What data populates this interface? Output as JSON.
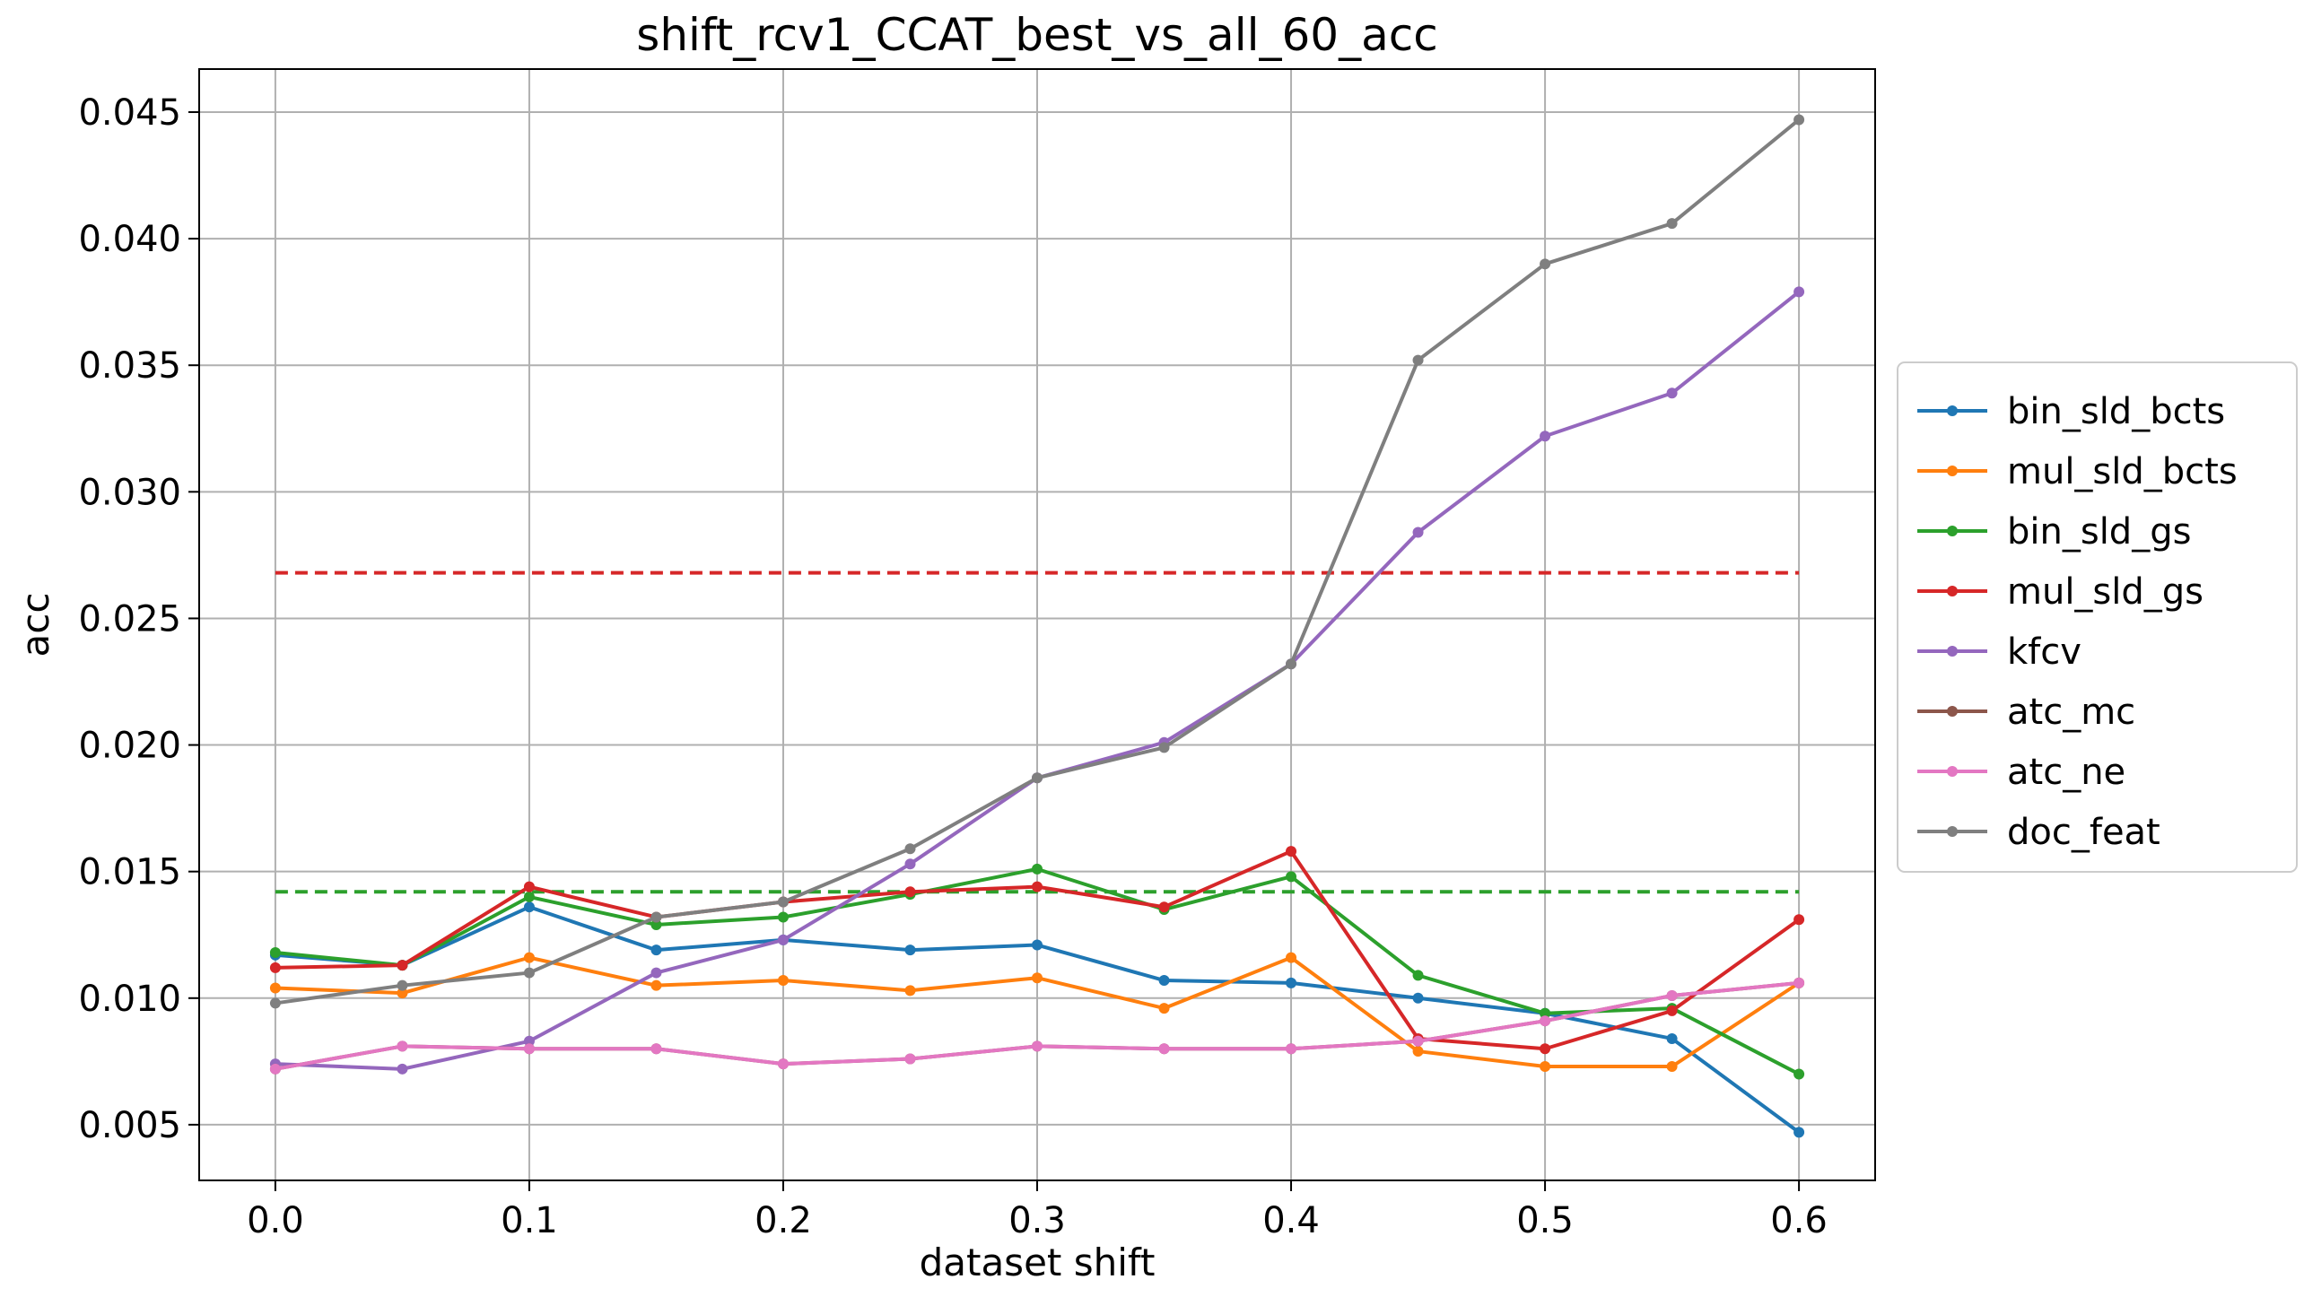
{
  "chart_data": {
    "type": "line",
    "title": "shift_rcv1_CCAT_best_vs_all_60_acc",
    "xlabel": "dataset shift",
    "ylabel": "acc",
    "xlim": [
      -0.03,
      0.63
    ],
    "ylim": [
      0.0028,
      0.0467
    ],
    "grid": true,
    "legend_position": "right-outside",
    "x": [
      0.0,
      0.05,
      0.1,
      0.15,
      0.2,
      0.25,
      0.3,
      0.35,
      0.4,
      0.45,
      0.5,
      0.55,
      0.6
    ],
    "x_ticks": [
      "0.0",
      "0.1",
      "0.2",
      "0.3",
      "0.4",
      "0.5",
      "0.6"
    ],
    "x_tick_values": [
      0.0,
      0.1,
      0.2,
      0.3,
      0.4,
      0.5,
      0.6
    ],
    "y_ticks": [
      "0.005",
      "0.010",
      "0.015",
      "0.020",
      "0.025",
      "0.030",
      "0.035",
      "0.040",
      "0.045"
    ],
    "y_tick_values": [
      0.005,
      0.01,
      0.015,
      0.02,
      0.025,
      0.03,
      0.035,
      0.04,
      0.045
    ],
    "series": [
      {
        "name": "bin_sld_bcts",
        "color": "#1f77b4",
        "values": [
          0.0117,
          0.0113,
          0.0136,
          0.0119,
          0.0123,
          0.0119,
          0.0121,
          0.0107,
          0.0106,
          0.01,
          0.0094,
          0.0084,
          0.0047
        ]
      },
      {
        "name": "mul_sld_bcts",
        "color": "#ff7f0e",
        "values": [
          0.0104,
          0.0102,
          0.0116,
          0.0105,
          0.0107,
          0.0103,
          0.0108,
          0.0096,
          0.0116,
          0.0079,
          0.0073,
          0.0073,
          0.0106
        ]
      },
      {
        "name": "bin_sld_gs",
        "color": "#2ca02c",
        "values": [
          0.0118,
          0.0113,
          0.014,
          0.0129,
          0.0132,
          0.0141,
          0.0151,
          0.0135,
          0.0148,
          0.0109,
          0.0094,
          0.0096,
          0.007
        ]
      },
      {
        "name": "mul_sld_gs",
        "color": "#d62728",
        "values": [
          0.0112,
          0.0113,
          0.0144,
          0.0132,
          0.0138,
          0.0142,
          0.0144,
          0.0136,
          0.0158,
          0.0084,
          0.008,
          0.0095,
          0.0131
        ]
      },
      {
        "name": "kfcv",
        "color": "#9467bd",
        "values": [
          0.0074,
          0.0072,
          0.0083,
          0.011,
          0.0123,
          0.0153,
          0.0187,
          0.0201,
          0.0232,
          0.0284,
          0.0322,
          0.0339,
          0.0379
        ]
      },
      {
        "name": "atc_mc",
        "color": "#8c564b",
        "values": [
          0.0072,
          0.0081,
          0.008,
          0.008,
          0.0074,
          0.0076,
          0.0081,
          0.008,
          0.008,
          0.0083,
          0.0091,
          0.0101,
          0.0106
        ]
      },
      {
        "name": "atc_ne",
        "color": "#e377c2",
        "values": [
          0.0072,
          0.0081,
          0.008,
          0.008,
          0.0074,
          0.0076,
          0.0081,
          0.008,
          0.008,
          0.0083,
          0.0091,
          0.0101,
          0.0106
        ]
      },
      {
        "name": "doc_feat",
        "color": "#7f7f7f",
        "values": [
          0.0098,
          0.0105,
          0.011,
          0.0132,
          0.0138,
          0.0159,
          0.0187,
          0.0199,
          0.0232,
          0.0352,
          0.039,
          0.0406,
          0.0447
        ]
      }
    ],
    "reference_lines": [
      {
        "color": "#d62728",
        "y": 0.0268,
        "x_range": [
          0.0,
          0.6
        ],
        "style": "dashed"
      },
      {
        "color": "#2ca02c",
        "y": 0.0142,
        "x_range": [
          0.0,
          0.6
        ],
        "style": "dashed"
      }
    ]
  }
}
